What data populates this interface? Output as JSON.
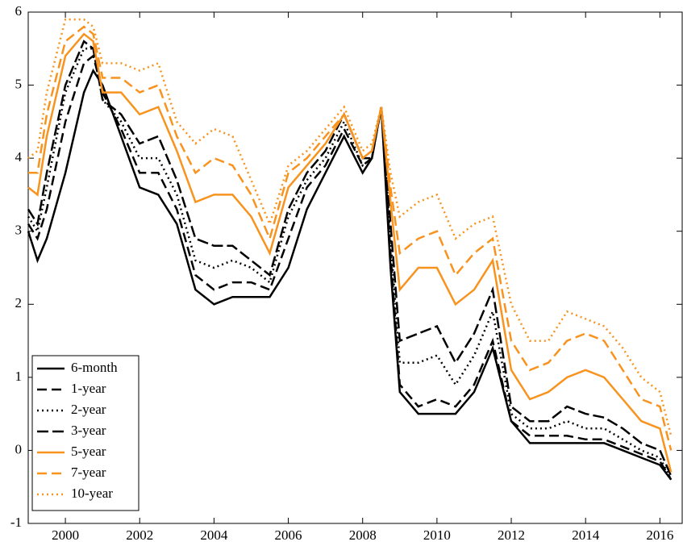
{
  "chart_data": {
    "type": "line",
    "x": [
      1999.0,
      1999.25,
      1999.5,
      2000.0,
      2000.5,
      2000.75,
      2001.0,
      2001.5,
      2002.0,
      2002.5,
      2003.0,
      2003.5,
      2004.0,
      2004.5,
      2005.0,
      2005.5,
      2006.0,
      2006.5,
      2007.0,
      2007.5,
      2008.0,
      2008.25,
      2008.5,
      2008.75,
      2009.0,
      2009.5,
      2010.0,
      2010.5,
      2011.0,
      2011.5,
      2012.0,
      2012.5,
      2013.0,
      2013.5,
      2014.0,
      2014.5,
      2015.0,
      2015.5,
      2016.0,
      2016.3
    ],
    "series": [
      {
        "name": "6-month",
        "color": "#000000",
        "style": "solid",
        "values": [
          3.0,
          2.6,
          2.9,
          3.8,
          4.9,
          5.2,
          5.0,
          4.3,
          3.6,
          3.5,
          3.1,
          2.2,
          2.0,
          2.1,
          2.1,
          2.1,
          2.5,
          3.3,
          3.8,
          4.3,
          3.8,
          4.0,
          4.7,
          2.5,
          0.8,
          0.5,
          0.5,
          0.5,
          0.8,
          1.4,
          0.4,
          0.1,
          0.1,
          0.1,
          0.1,
          0.1,
          0.0,
          -0.1,
          -0.2,
          -0.4
        ]
      },
      {
        "name": "1-year",
        "color": "#000000",
        "style": "dash",
        "values": [
          3.1,
          2.9,
          3.3,
          4.5,
          5.3,
          5.4,
          4.9,
          4.4,
          3.8,
          3.8,
          3.3,
          2.4,
          2.2,
          2.3,
          2.3,
          2.2,
          2.9,
          3.6,
          3.9,
          4.4,
          3.9,
          4.0,
          4.7,
          2.7,
          0.9,
          0.6,
          0.7,
          0.6,
          0.9,
          1.5,
          0.4,
          0.2,
          0.2,
          0.2,
          0.15,
          0.15,
          0.05,
          -0.05,
          -0.15,
          -0.4
        ]
      },
      {
        "name": "2-year",
        "color": "#000000",
        "style": "dot",
        "values": [
          3.2,
          3.0,
          3.6,
          4.9,
          5.5,
          5.5,
          4.8,
          4.5,
          4.0,
          4.0,
          3.5,
          2.6,
          2.5,
          2.6,
          2.5,
          2.3,
          3.2,
          3.7,
          4.0,
          4.5,
          3.9,
          4.0,
          4.7,
          2.9,
          1.2,
          1.2,
          1.3,
          0.9,
          1.3,
          1.9,
          0.5,
          0.3,
          0.3,
          0.4,
          0.3,
          0.3,
          0.15,
          0.0,
          -0.1,
          -0.4
        ]
      },
      {
        "name": "3-year",
        "color": "#000000",
        "style": "dashdot",
        "values": [
          3.3,
          3.1,
          3.8,
          5.0,
          5.6,
          5.5,
          4.8,
          4.6,
          4.2,
          4.3,
          3.7,
          2.9,
          2.8,
          2.8,
          2.6,
          2.4,
          3.3,
          3.8,
          4.1,
          4.6,
          4.0,
          4.0,
          4.7,
          3.1,
          1.5,
          1.6,
          1.7,
          1.2,
          1.6,
          2.2,
          0.6,
          0.4,
          0.4,
          0.6,
          0.5,
          0.45,
          0.3,
          0.1,
          0.0,
          -0.35
        ]
      },
      {
        "name": "5-year",
        "color": "#f7931e",
        "style": "solid",
        "values": [
          3.6,
          3.5,
          4.3,
          5.4,
          5.7,
          5.6,
          4.9,
          4.9,
          4.6,
          4.7,
          4.1,
          3.4,
          3.5,
          3.5,
          3.2,
          2.7,
          3.6,
          3.9,
          4.2,
          4.6,
          4.0,
          4.1,
          4.7,
          3.4,
          2.2,
          2.5,
          2.5,
          2.0,
          2.2,
          2.6,
          1.1,
          0.7,
          0.8,
          1.0,
          1.1,
          1.0,
          0.7,
          0.4,
          0.3,
          -0.3
        ]
      },
      {
        "name": "7-year",
        "color": "#f7931e",
        "style": "dash",
        "values": [
          3.8,
          3.8,
          4.6,
          5.6,
          5.8,
          5.7,
          5.1,
          5.1,
          4.9,
          5.0,
          4.3,
          3.8,
          4.0,
          3.9,
          3.5,
          2.9,
          3.8,
          4.0,
          4.3,
          4.6,
          4.0,
          4.1,
          4.7,
          3.6,
          2.7,
          2.9,
          3.0,
          2.4,
          2.7,
          2.9,
          1.5,
          1.1,
          1.2,
          1.5,
          1.6,
          1.5,
          1.1,
          0.7,
          0.6,
          0.0
        ]
      },
      {
        "name": "10-year",
        "color": "#f7931e",
        "style": "dot",
        "values": [
          4.0,
          4.1,
          4.9,
          5.9,
          5.9,
          5.8,
          5.3,
          5.3,
          5.2,
          5.3,
          4.5,
          4.2,
          4.4,
          4.3,
          3.7,
          3.1,
          3.9,
          4.1,
          4.4,
          4.7,
          4.1,
          4.2,
          4.7,
          3.8,
          3.2,
          3.4,
          3.5,
          2.9,
          3.1,
          3.2,
          2.0,
          1.5,
          1.5,
          1.9,
          1.8,
          1.7,
          1.4,
          1.0,
          0.8,
          0.2
        ]
      }
    ],
    "xlim": [
      1999,
      2016.6
    ],
    "xticks": [
      2000,
      2002,
      2004,
      2006,
      2008,
      2010,
      2012,
      2014,
      2016
    ],
    "ylim": [
      -1,
      6
    ],
    "yticks": [
      -1,
      0,
      1,
      2,
      3,
      4,
      5,
      6
    ],
    "legend": "lower left"
  }
}
